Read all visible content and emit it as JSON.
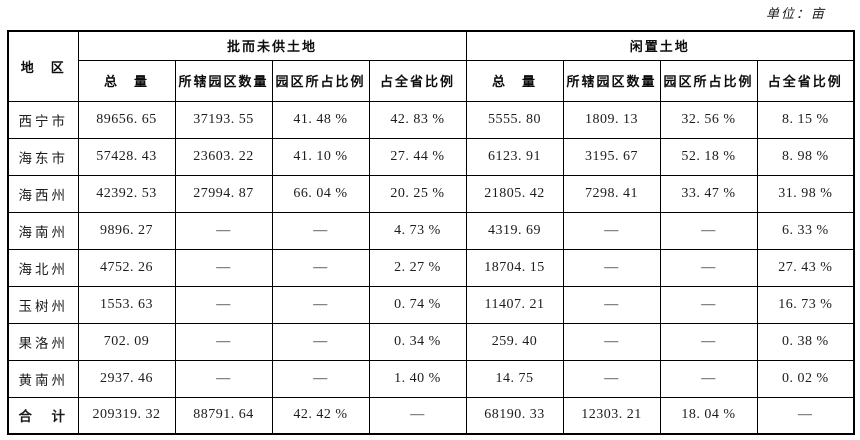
{
  "unit_label": "单位：亩",
  "table": {
    "region_header": "地　区",
    "groups": [
      {
        "label": "批而未供土地"
      },
      {
        "label": "闲置土地"
      }
    ],
    "sub_headers": [
      "总　量",
      "所辖园区数量",
      "园区所占比例",
      "占全省比例"
    ],
    "rows": [
      {
        "region": "西宁市",
        "values": [
          "89656. 65",
          "37193. 55",
          "41. 48 %",
          "42. 83 %",
          "5555. 80",
          "1809. 13",
          "32. 56 %",
          "8. 15 %"
        ]
      },
      {
        "region": "海东市",
        "values": [
          "57428. 43",
          "23603. 22",
          "41. 10 %",
          "27. 44 %",
          "6123. 91",
          "3195. 67",
          "52. 18 %",
          "8. 98 %"
        ]
      },
      {
        "region": "海西州",
        "values": [
          "42392. 53",
          "27994. 87",
          "66. 04 %",
          "20. 25 %",
          "21805. 42",
          "7298. 41",
          "33. 47 %",
          "31. 98 %"
        ]
      },
      {
        "region": "海南州",
        "values": [
          "9896. 27",
          "—",
          "—",
          "4. 73 %",
          "4319. 69",
          "—",
          "—",
          "6. 33 %"
        ]
      },
      {
        "region": "海北州",
        "values": [
          "4752. 26",
          "—",
          "—",
          "2. 27 %",
          "18704. 15",
          "—",
          "—",
          "27. 43 %"
        ]
      },
      {
        "region": "玉树州",
        "values": [
          "1553. 63",
          "—",
          "—",
          "0. 74 %",
          "11407. 21",
          "—",
          "—",
          "16. 73 %"
        ]
      },
      {
        "region": "果洛州",
        "values": [
          "702. 09",
          "—",
          "—",
          "0. 34 %",
          "259. 40",
          "—",
          "—",
          "0. 38 %"
        ]
      },
      {
        "region": "黄南州",
        "values": [
          "2937. 46",
          "—",
          "—",
          "1. 40 %",
          "14. 75",
          "—",
          "—",
          "0. 02 %"
        ]
      },
      {
        "region": "合　计",
        "values": [
          "209319. 32",
          "88791. 64",
          "42. 42 %",
          "—",
          "68190. 33",
          "12303. 21",
          "18. 04 %",
          "—"
        ],
        "is_total": true
      }
    ]
  }
}
